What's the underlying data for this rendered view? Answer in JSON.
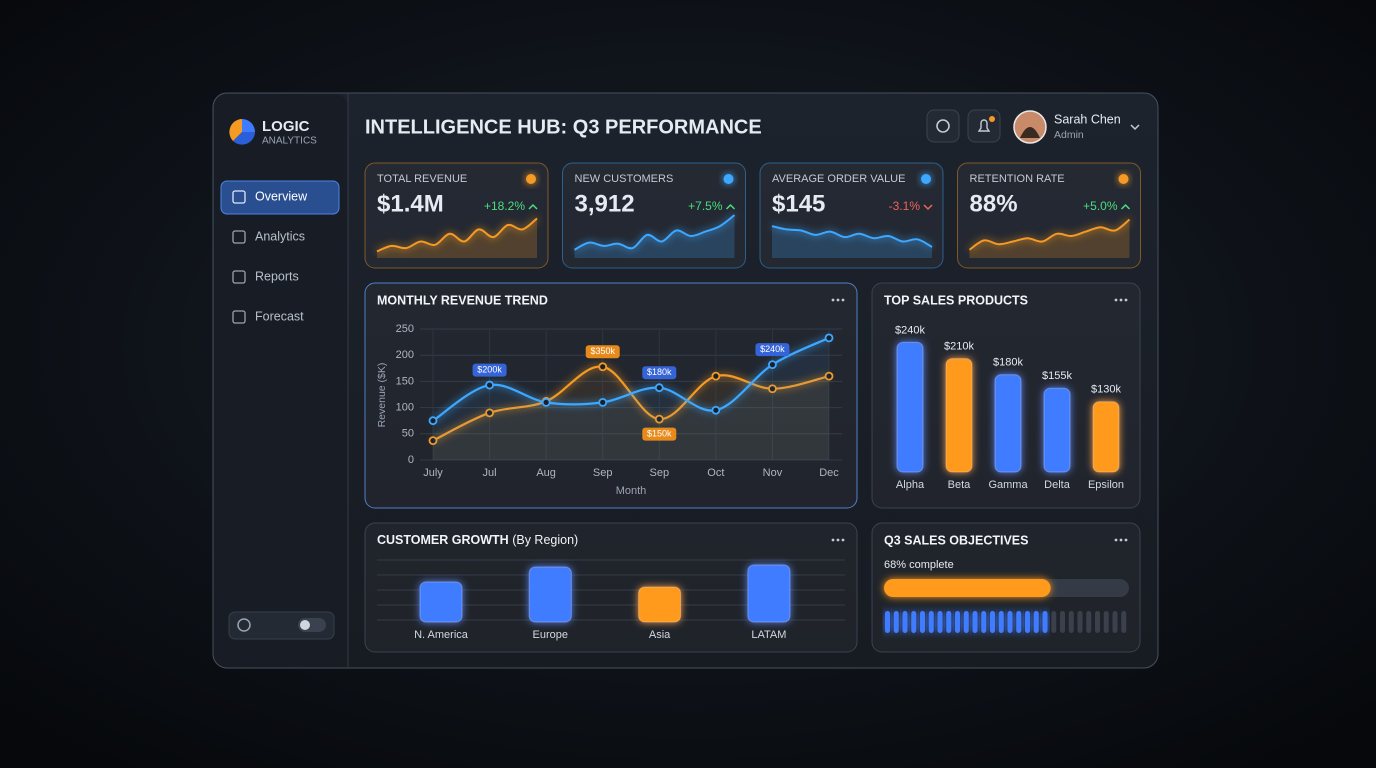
{
  "sidebar": {
    "brand": {
      "name": "LOGIC",
      "sub": "ANALYTICS"
    },
    "nav": [
      {
        "label": "Overview",
        "active": true
      },
      {
        "label": "Analytics",
        "active": false
      },
      {
        "label": "Reports",
        "active": false
      },
      {
        "label": "Forecast",
        "active": false
      }
    ]
  },
  "header": {
    "title": "INTELLIGENCE HUB: Q3 PERFORMANCE",
    "user": {
      "name": "Sarah Chen",
      "role": "Admin"
    }
  },
  "kpis": [
    {
      "label": "TOTAL REVENUE",
      "value": "$1.4M",
      "change": "+18.2%",
      "trend": "up",
      "color": "#f59a23",
      "spark": [
        12,
        22,
        18,
        30,
        24,
        44,
        30,
        52,
        38,
        60,
        52,
        72
      ]
    },
    {
      "label": "NEW CUSTOMERS",
      "value": "3,912",
      "change": "+7.5%",
      "trend": "up",
      "color": "#3ea8ff",
      "spark": [
        15,
        28,
        22,
        26,
        18,
        42,
        30,
        50,
        40,
        48,
        58,
        78
      ]
    },
    {
      "label": "AVERAGE ORDER VALUE",
      "value": "$145",
      "change": "-3.1%",
      "trend": "down",
      "color": "#3ea8ff",
      "spark": [
        58,
        52,
        50,
        42,
        48,
        38,
        44,
        36,
        40,
        30,
        34,
        20
      ]
    },
    {
      "label": "RETENTION RATE",
      "value": "88%",
      "change": "+5.0%",
      "trend": "up",
      "color": "#f59a23",
      "spark": [
        15,
        32,
        25,
        30,
        36,
        30,
        44,
        40,
        48,
        56,
        50,
        70
      ]
    }
  ],
  "revenue_trend": {
    "type": "line",
    "title": "MONTHLY REVENUE TREND",
    "y_label": "Revenue ($K)",
    "x_label": "Month",
    "categories": [
      "July",
      "Jul",
      "Aug",
      "Sep",
      "Sep",
      "Oct",
      "Nov",
      "Dec"
    ],
    "ylim": [
      0,
      250
    ],
    "yticks": [
      0,
      50,
      100,
      150,
      200,
      250
    ],
    "grid": true,
    "series": [
      {
        "color": "#3ea8ff",
        "values": [
          75,
          143,
          110,
          110,
          138,
          95,
          182,
          233
        ]
      },
      {
        "color": "#f59a23",
        "values": [
          37,
          90,
          112,
          178,
          78,
          160,
          136,
          160
        ]
      }
    ],
    "annotations": [
      {
        "text": "$200k",
        "color": "#3563d8"
      },
      {
        "text": "$350k",
        "color": "#e88a1a"
      },
      {
        "text": "$180k",
        "color": "#3563d8"
      },
      {
        "text": "$150k",
        "color": "#e88a1a"
      },
      {
        "text": "$240k",
        "color": "#3563d8"
      }
    ]
  },
  "top_products": {
    "type": "bar",
    "title": "TOP SALES PRODUCTS",
    "categories": [
      "Alpha",
      "Beta",
      "Gamma",
      "Delta",
      "Epsilon"
    ],
    "values": [
      240,
      210,
      180,
      155,
      130
    ],
    "value_labels": [
      "$240k",
      "$210k",
      "$180k",
      "$155k",
      "$130k"
    ],
    "colors": [
      "#3f7bff",
      "#ff9a1f",
      "#3f7bff",
      "#3f7bff",
      "#ff9a1f"
    ]
  },
  "customer_growth": {
    "type": "bar",
    "title": "CUSTOMER GROWTH",
    "subtitle": "(By Region)",
    "categories": [
      "N. America",
      "Europe",
      "Asia",
      "LATAM"
    ],
    "values": [
      40,
      55,
      35,
      57
    ],
    "colors": [
      "#3f7bff",
      "#3f7bff",
      "#ff9a1f",
      "#3f7bff"
    ],
    "grid": true
  },
  "objectives": {
    "title": "Q3 SALES OBJECTIVES",
    "progress": 68,
    "progress_label": "68% complete"
  }
}
